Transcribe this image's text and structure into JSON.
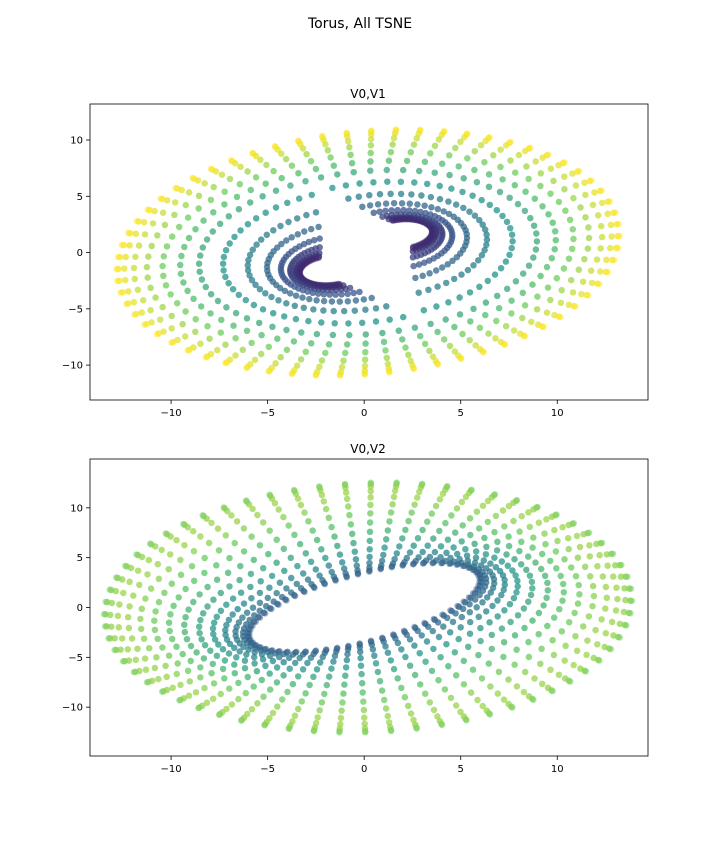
{
  "figure": {
    "title": "Torus, All TSNE"
  },
  "colormap": [
    "#440154",
    "#3b528b",
    "#21908d",
    "#5dc963",
    "#fde725"
  ],
  "chart_data": [
    {
      "type": "scatter",
      "title": "V0,V1",
      "xlabel": "",
      "ylabel": "",
      "xlim": [
        -14.2,
        14.7
      ],
      "ylim": [
        -13.1,
        13.2
      ],
      "xticks": [
        -10,
        -5,
        0,
        5,
        10
      ],
      "yticks": [
        -10,
        -5,
        0,
        5,
        10
      ],
      "grid": false,
      "marker_alpha": 0.5,
      "description_of_points": "dense torus-shaped point cloud, approx. 2000 points, colored by viridis colormap",
      "outer_ellipse": {
        "center": [
          0.2,
          0.0
        ],
        "semi_axes": [
          13.6,
          10.8
        ],
        "rotation_deg": 20
      },
      "hole_centers": [
        [
          -3.6,
          -2.9
        ],
        [
          3.2,
          3.0
        ]
      ]
    },
    {
      "type": "scatter",
      "title": "V0,V2",
      "xlabel": "",
      "ylabel": "",
      "xlim": [
        -14.2,
        14.7
      ],
      "ylim": [
        -14.9,
        14.9
      ],
      "xticks": [
        -10,
        -5,
        0,
        5,
        10
      ],
      "yticks": [
        -10,
        -5,
        0,
        5,
        10
      ],
      "grid": false,
      "marker_alpha": 0.5,
      "description_of_points": "torus point cloud with a central elliptical hole, colored by viridis colormap",
      "outer_ellipse": {
        "center": [
          0.2,
          0.0
        ],
        "semi_axes": [
          13.8,
          12.4
        ],
        "rotation_deg": 18
      },
      "hole_ellipse": {
        "center": [
          0.0,
          0.0
        ],
        "semi_axes": [
          6.2,
          2.3
        ],
        "rotation_deg": 34
      }
    }
  ]
}
